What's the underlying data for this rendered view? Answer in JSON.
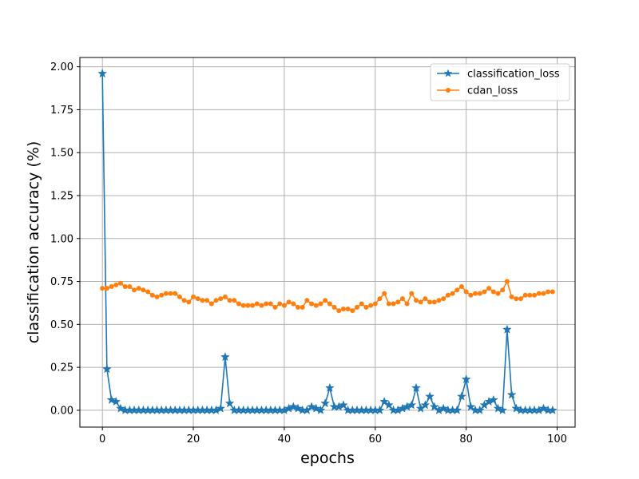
{
  "chart_data": {
    "type": "line",
    "title": "",
    "xlabel": "epochs",
    "ylabel": "classification accuracy (%)",
    "xlim": [
      -4.95,
      103.95
    ],
    "ylim": [
      -0.098,
      2.054
    ],
    "xticks": [
      0,
      20,
      40,
      60,
      80,
      100
    ],
    "xtick_labels": [
      "0",
      "20",
      "40",
      "60",
      "80",
      "100"
    ],
    "yticks": [
      0.0,
      0.25,
      0.5,
      0.75,
      1.0,
      1.25,
      1.5,
      1.75,
      2.0
    ],
    "ytick_labels": [
      "0.00",
      "0.25",
      "0.50",
      "0.75",
      "1.00",
      "1.25",
      "1.50",
      "1.75",
      "2.00"
    ],
    "grid": true,
    "legend_position": "top-right",
    "series": [
      {
        "name": "classification_loss",
        "color": "#1f77b4",
        "marker": "star",
        "x": [
          0,
          1,
          2,
          3,
          4,
          5,
          6,
          7,
          8,
          9,
          10,
          11,
          12,
          13,
          14,
          15,
          16,
          17,
          18,
          19,
          20,
          21,
          22,
          23,
          24,
          25,
          26,
          27,
          28,
          29,
          30,
          31,
          32,
          33,
          34,
          35,
          36,
          37,
          38,
          39,
          40,
          41,
          42,
          43,
          44,
          45,
          46,
          47,
          48,
          49,
          50,
          51,
          52,
          53,
          54,
          55,
          56,
          57,
          58,
          59,
          60,
          61,
          62,
          63,
          64,
          65,
          66,
          67,
          68,
          69,
          70,
          71,
          72,
          73,
          74,
          75,
          76,
          77,
          78,
          79,
          80,
          81,
          82,
          83,
          84,
          85,
          86,
          87,
          88,
          89,
          90,
          91,
          92,
          93,
          94,
          95,
          96,
          97,
          98,
          99
        ],
        "values": [
          1.96,
          0.24,
          0.06,
          0.05,
          0.01,
          0.0,
          0.0,
          0.0,
          0.0,
          0.0,
          0.0,
          0.0,
          0.0,
          0.0,
          0.0,
          0.0,
          0.0,
          0.0,
          0.0,
          0.0,
          0.0,
          0.0,
          0.0,
          0.0,
          0.0,
          0.0,
          0.01,
          0.31,
          0.04,
          0.0,
          0.0,
          0.0,
          0.0,
          0.0,
          0.0,
          0.0,
          0.0,
          0.0,
          0.0,
          0.0,
          0.0,
          0.01,
          0.02,
          0.01,
          0.0,
          0.0,
          0.02,
          0.01,
          0.0,
          0.04,
          0.13,
          0.02,
          0.02,
          0.03,
          0.0,
          0.0,
          0.0,
          0.0,
          0.0,
          0.0,
          0.0,
          0.0,
          0.05,
          0.03,
          0.0,
          0.0,
          0.01,
          0.02,
          0.03,
          0.13,
          0.01,
          0.03,
          0.08,
          0.02,
          0.0,
          0.01,
          0.0,
          0.0,
          0.0,
          0.08,
          0.18,
          0.02,
          0.0,
          0.0,
          0.03,
          0.05,
          0.06,
          0.01,
          0.0,
          0.47,
          0.09,
          0.01,
          0.0,
          0.0,
          0.0,
          0.0,
          0.0,
          0.01,
          0.0,
          0.0
        ]
      },
      {
        "name": "cdan_loss",
        "color": "#ff7f0e",
        "marker": "circle",
        "x": [
          0,
          1,
          2,
          3,
          4,
          5,
          6,
          7,
          8,
          9,
          10,
          11,
          12,
          13,
          14,
          15,
          16,
          17,
          18,
          19,
          20,
          21,
          22,
          23,
          24,
          25,
          26,
          27,
          28,
          29,
          30,
          31,
          32,
          33,
          34,
          35,
          36,
          37,
          38,
          39,
          40,
          41,
          42,
          43,
          44,
          45,
          46,
          47,
          48,
          49,
          50,
          51,
          52,
          53,
          54,
          55,
          56,
          57,
          58,
          59,
          60,
          61,
          62,
          63,
          64,
          65,
          66,
          67,
          68,
          69,
          70,
          71,
          72,
          73,
          74,
          75,
          76,
          77,
          78,
          79,
          80,
          81,
          82,
          83,
          84,
          85,
          86,
          87,
          88,
          89,
          90,
          91,
          92,
          93,
          94,
          95,
          96,
          97,
          98,
          99
        ],
        "values": [
          0.71,
          0.71,
          0.72,
          0.73,
          0.74,
          0.72,
          0.72,
          0.7,
          0.71,
          0.7,
          0.69,
          0.67,
          0.66,
          0.67,
          0.68,
          0.68,
          0.68,
          0.66,
          0.64,
          0.63,
          0.66,
          0.65,
          0.64,
          0.64,
          0.62,
          0.64,
          0.65,
          0.66,
          0.64,
          0.64,
          0.62,
          0.61,
          0.61,
          0.61,
          0.62,
          0.61,
          0.62,
          0.62,
          0.6,
          0.62,
          0.61,
          0.63,
          0.62,
          0.6,
          0.6,
          0.64,
          0.62,
          0.61,
          0.62,
          0.64,
          0.62,
          0.6,
          0.58,
          0.59,
          0.59,
          0.58,
          0.6,
          0.62,
          0.6,
          0.61,
          0.62,
          0.65,
          0.68,
          0.62,
          0.62,
          0.63,
          0.65,
          0.62,
          0.68,
          0.64,
          0.63,
          0.65,
          0.63,
          0.63,
          0.64,
          0.65,
          0.67,
          0.68,
          0.7,
          0.72,
          0.69,
          0.67,
          0.68,
          0.68,
          0.69,
          0.71,
          0.69,
          0.68,
          0.7,
          0.75,
          0.66,
          0.65,
          0.65,
          0.67,
          0.67,
          0.67,
          0.68,
          0.68,
          0.69,
          0.69
        ]
      }
    ]
  }
}
